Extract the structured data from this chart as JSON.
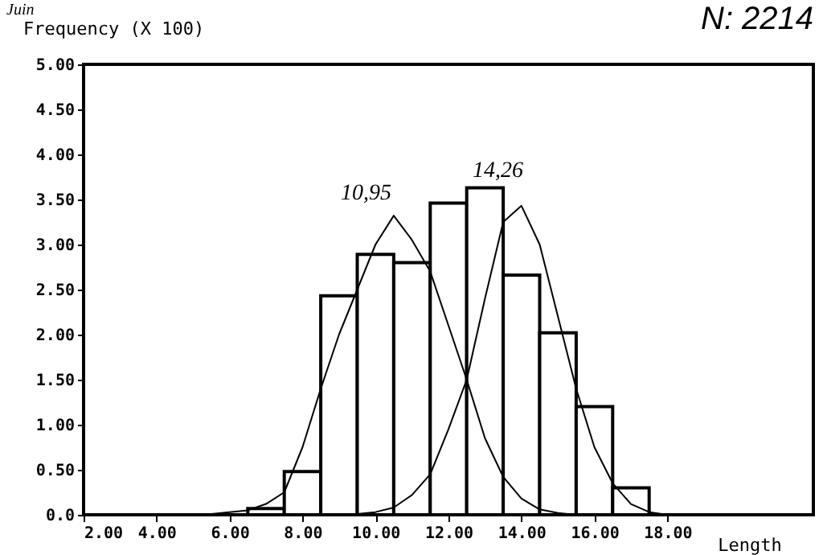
{
  "chart_data": {
    "type": "histogram",
    "ylabel": "Frequency (X 100)",
    "xlabel": "Length",
    "bins": [
      6.5,
      7.5,
      8.5,
      9.5,
      10.5,
      11.5,
      12.5,
      13.5,
      14.5,
      15.5,
      16.5,
      17.5
    ],
    "values": [
      0.07,
      0.48,
      2.43,
      2.89,
      2.8,
      3.46,
      3.63,
      2.66,
      2.02,
      1.2,
      0.3
    ],
    "color": "#ffffff",
    "series": [
      {
        "type": "line",
        "color": "#000000",
        "x": [
          5.5,
          6.5,
          7,
          7.5,
          8,
          8.5,
          9,
          9.5,
          10,
          10.5,
          11,
          11.5,
          12,
          12.5,
          13,
          13.5,
          14,
          14.5,
          15,
          15.5
        ],
        "values": [
          0.01,
          0.05,
          0.12,
          0.25,
          0.75,
          1.4,
          2.0,
          2.5,
          3.0,
          3.32,
          3.05,
          2.7,
          2.1,
          1.5,
          0.85,
          0.42,
          0.18,
          0.06,
          0.02,
          0
        ]
      },
      {
        "type": "line",
        "color": "#000000",
        "x": [
          9.5,
          10,
          10.5,
          11,
          11.5,
          12,
          12.5,
          13,
          13.5,
          14,
          14.5,
          15,
          15.5,
          16,
          16.5,
          17,
          17.5,
          18
        ],
        "values": [
          0.01,
          0.03,
          0.08,
          0.22,
          0.45,
          0.95,
          1.5,
          2.4,
          3.25,
          3.43,
          3.0,
          2.2,
          1.4,
          0.75,
          0.35,
          0.12,
          0.03,
          0
        ]
      }
    ],
    "xlim": [
      2,
      22
    ],
    "xticks": [
      {
        "value": 2,
        "label": "2.00"
      },
      {
        "value": 4,
        "label": "4.00"
      },
      {
        "value": 6,
        "label": "6.00"
      },
      {
        "value": 8,
        "label": "8.00"
      },
      {
        "value": 10,
        "label": "10.00"
      },
      {
        "value": 12,
        "label": "12.00"
      },
      {
        "value": 14,
        "label": "14.00"
      },
      {
        "value": 16,
        "label": "16.00"
      },
      {
        "value": 18,
        "label": "18.00"
      }
    ],
    "ylim": [
      0,
      5
    ],
    "yticks": [
      {
        "value": 0,
        "label": "0.0"
      },
      {
        "value": 0.5,
        "label": "0.50"
      },
      {
        "value": 1,
        "label": "1.00"
      },
      {
        "value": 1.5,
        "label": "1.50"
      },
      {
        "value": 2,
        "label": "2.00"
      },
      {
        "value": 2.5,
        "label": "2.50"
      },
      {
        "value": 3,
        "label": "3.00"
      },
      {
        "value": 3.5,
        "label": "3.50"
      },
      {
        "value": 4,
        "label": "4.00"
      },
      {
        "value": 4.5,
        "label": "4.50"
      },
      {
        "value": 5,
        "label": "5.00"
      }
    ],
    "grid": false,
    "marker": "none",
    "line_style": "solid",
    "annotations": [
      "Juin",
      "N: 2214",
      "10,95",
      "14,26"
    ]
  }
}
